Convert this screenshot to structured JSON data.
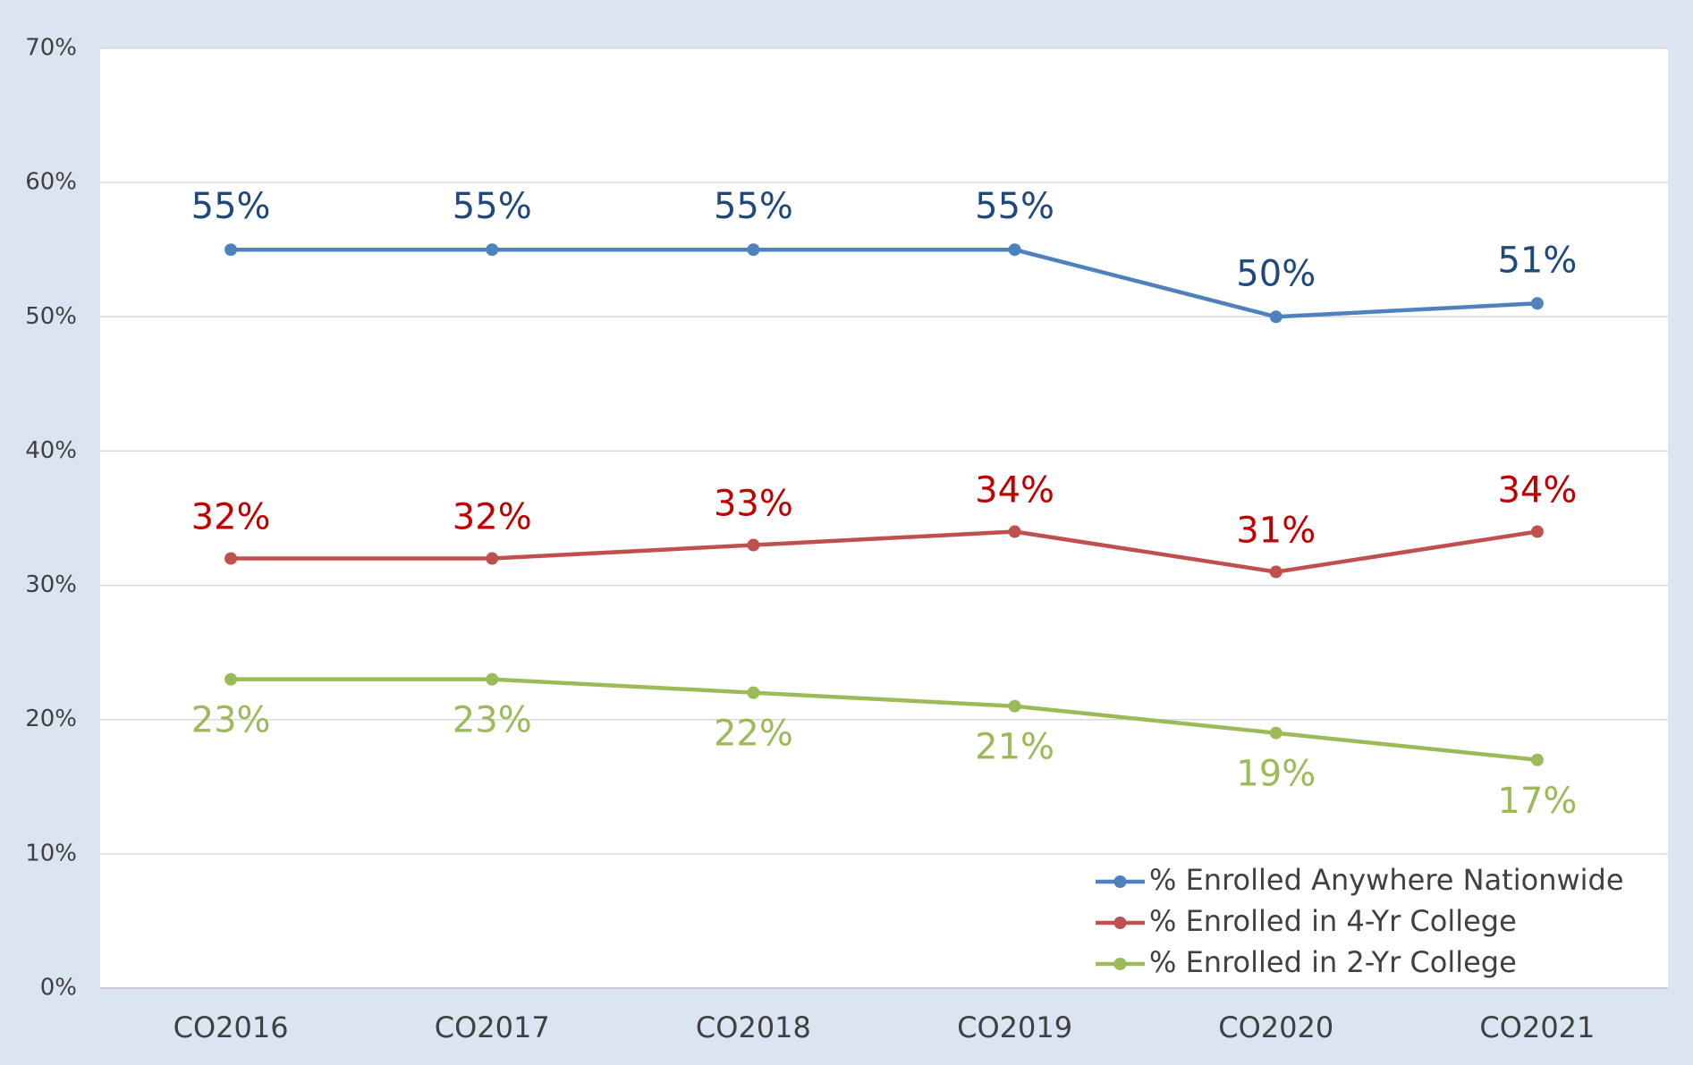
{
  "chart_data": {
    "type": "line",
    "categories": [
      "CO2016",
      "CO2017",
      "CO2018",
      "CO2019",
      "CO2020",
      "CO2021"
    ],
    "series": [
      {
        "name": "% Enrolled Anywhere Nationwide",
        "color": "#4f81bd",
        "label_color": "#1f497d",
        "values": [
          55,
          55,
          55,
          55,
          50,
          51
        ],
        "value_labels": [
          "55%",
          "55%",
          "55%",
          "55%",
          "50%",
          "51%"
        ]
      },
      {
        "name": "% Enrolled in 4-Yr College",
        "color": "#c0504d",
        "label_color": "#c00000",
        "values": [
          32,
          32,
          33,
          34,
          31,
          34
        ],
        "value_labels": [
          "32%",
          "32%",
          "33%",
          "34%",
          "31%",
          "34%"
        ]
      },
      {
        "name": "% Enrolled in 2-Yr College",
        "color": "#9bbb59",
        "label_color": "#9bbb59",
        "values": [
          23,
          23,
          22,
          21,
          19,
          17
        ],
        "value_labels": [
          "23%",
          "23%",
          "22%",
          "21%",
          "19%",
          "17%"
        ]
      }
    ],
    "ylim": [
      0,
      70
    ],
    "yticks": [
      {
        "value": 0,
        "label": "0%"
      },
      {
        "value": 10,
        "label": "10%"
      },
      {
        "value": 20,
        "label": "20%"
      },
      {
        "value": 30,
        "label": "30%"
      },
      {
        "value": 40,
        "label": "40%"
      },
      {
        "value": 50,
        "label": "50%"
      },
      {
        "value": 60,
        "label": "60%"
      },
      {
        "value": 70,
        "label": "70%"
      }
    ],
    "grid": true,
    "legend": "lower right"
  }
}
